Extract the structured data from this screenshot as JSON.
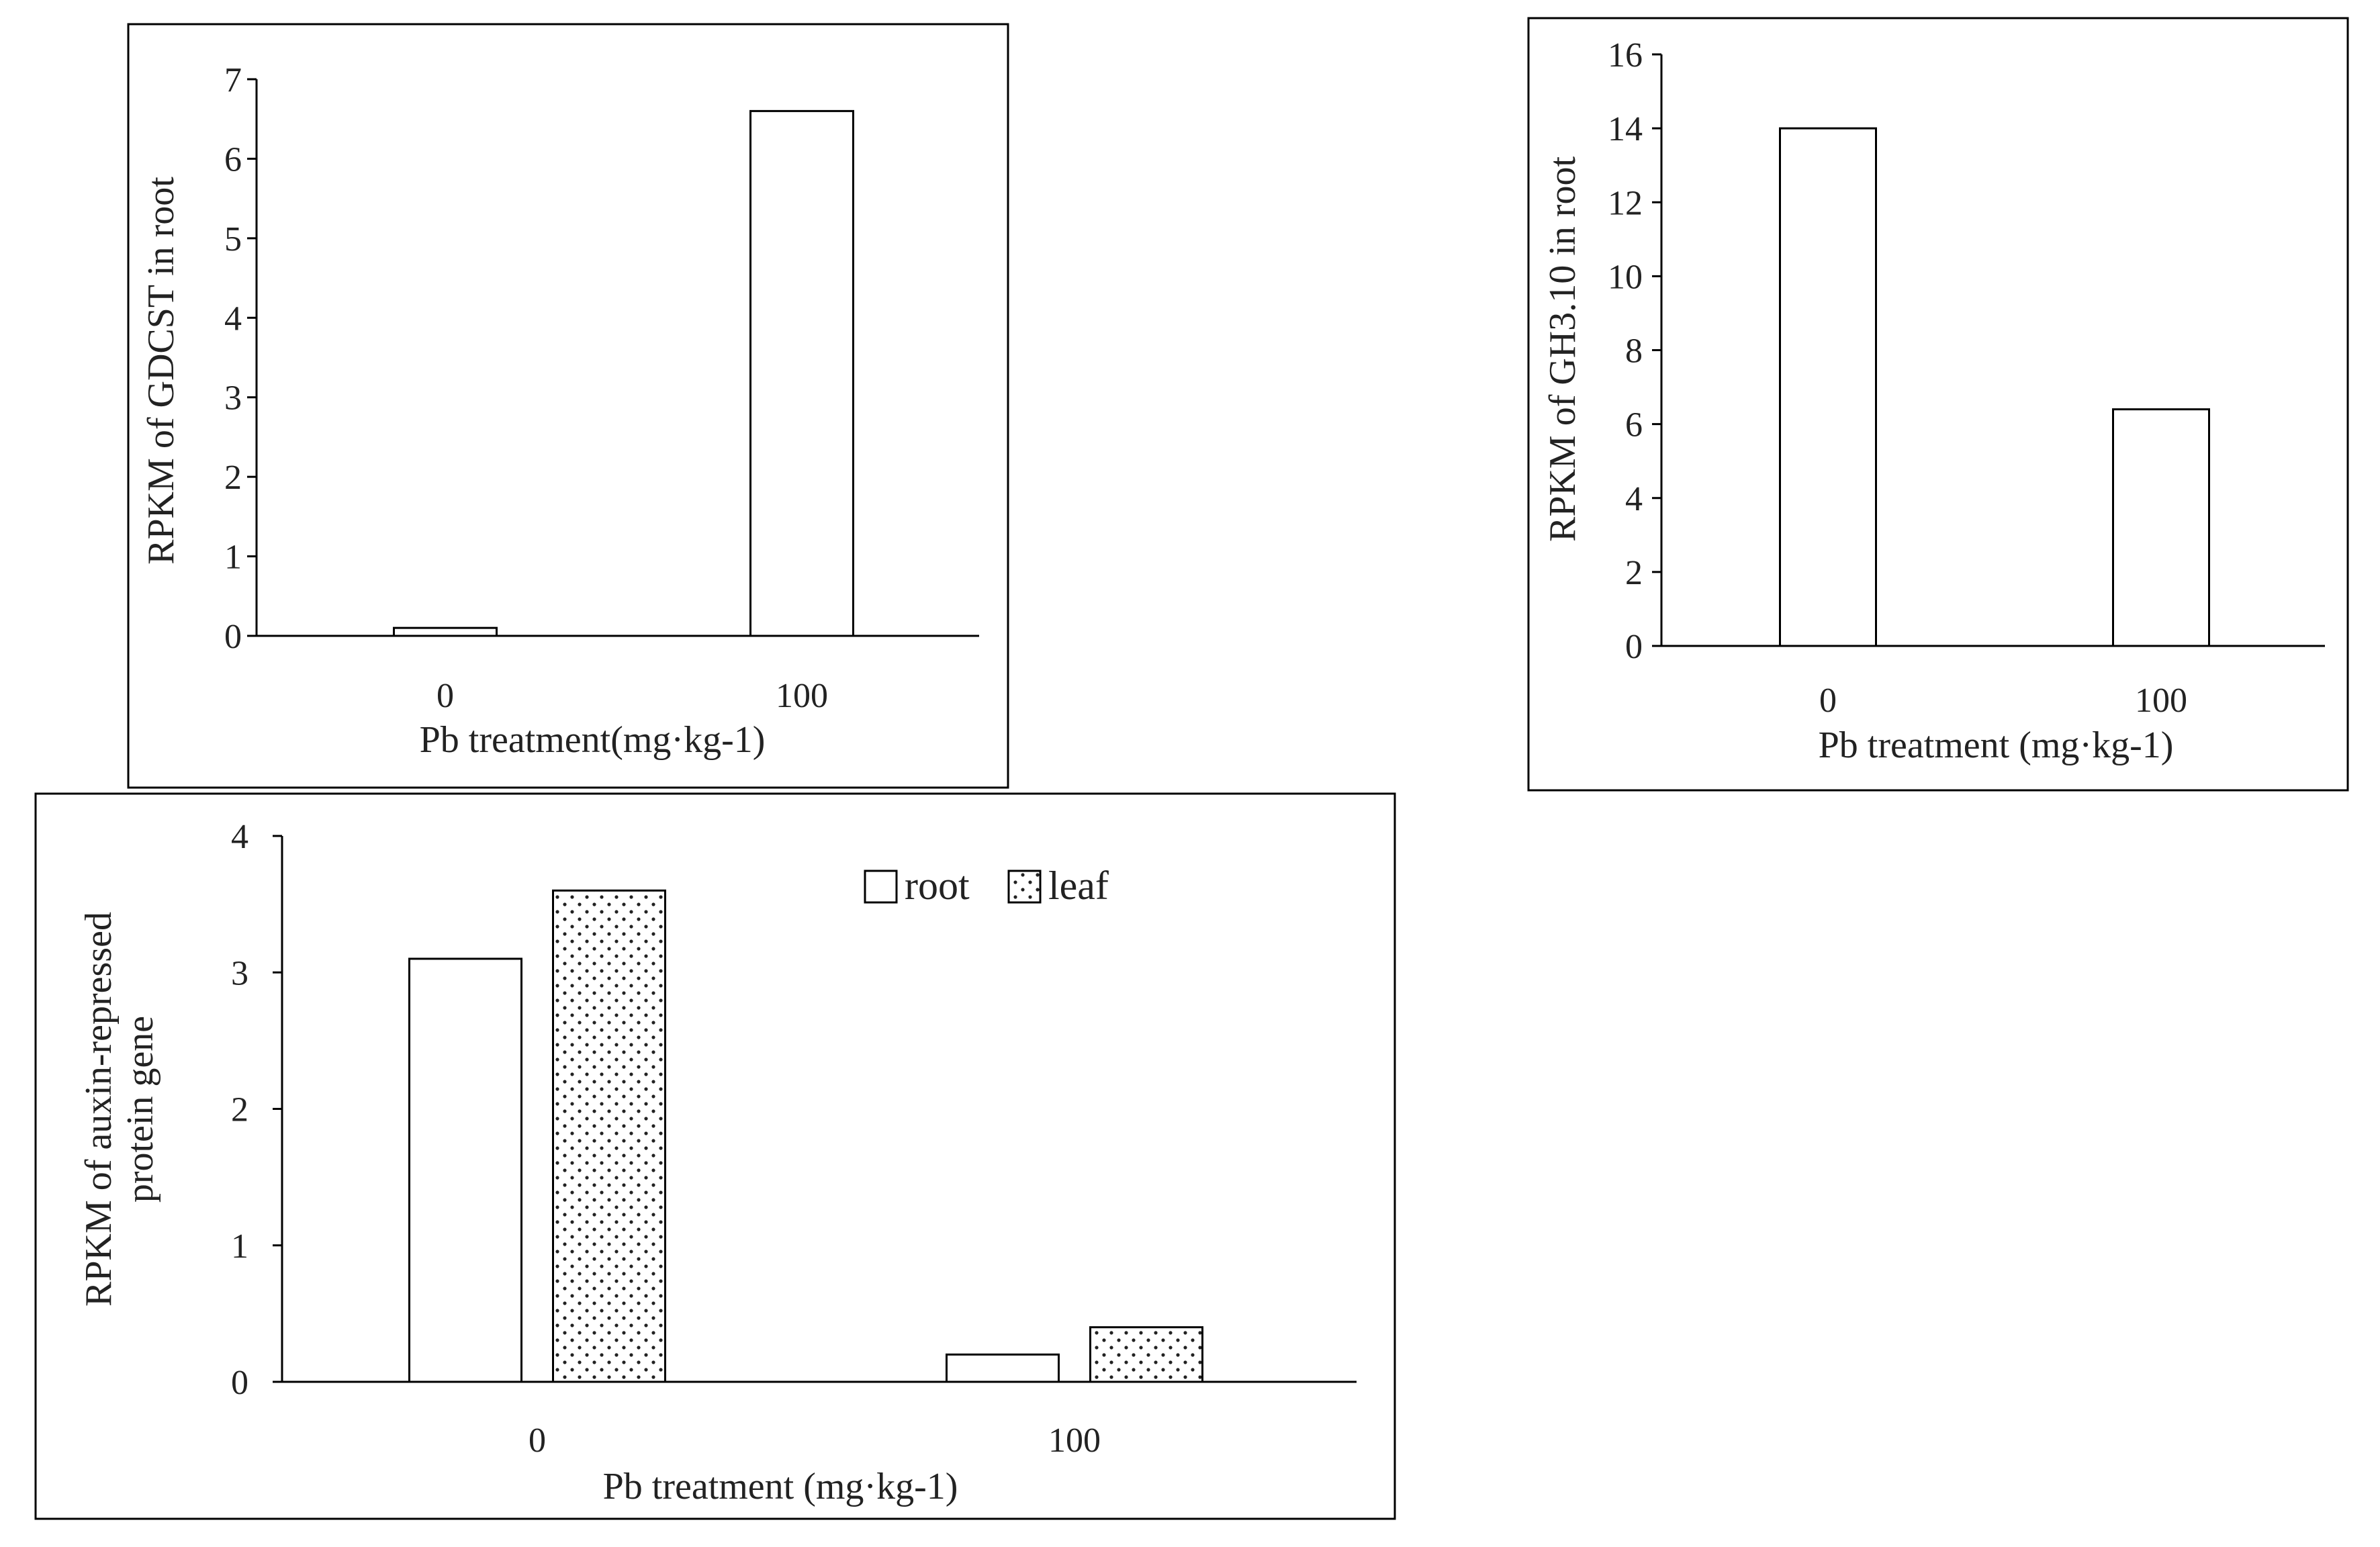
{
  "chart_data": [
    {
      "type": "bar",
      "title": "",
      "categories": [
        "0",
        "100"
      ],
      "values": [
        0.1,
        6.6
      ],
      "xlabel": "Pb treatment(mg·kg-1)",
      "ylabel": "RPKM of GDCST in root",
      "ylim": [
        0,
        7
      ],
      "yticks": [
        "0",
        "1",
        "2",
        "3",
        "4",
        "5",
        "6",
        "7"
      ],
      "grid": false
    },
    {
      "type": "bar",
      "title": "",
      "categories": [
        "0",
        "100"
      ],
      "values": [
        14.0,
        6.4
      ],
      "xlabel": "Pb treatment (mg·kg-1)",
      "ylabel": "RPKM of GH3.10 in root",
      "ylim": [
        0,
        16
      ],
      "yticks": [
        "0",
        "2",
        "4",
        "6",
        "8",
        "10",
        "12",
        "14",
        "16"
      ],
      "grid": false
    },
    {
      "type": "bar",
      "title": "",
      "categories": [
        "0",
        "100"
      ],
      "series": [
        {
          "name": "root",
          "values": [
            3.1,
            0.2
          ]
        },
        {
          "name": "leaf",
          "values": [
            3.6,
            0.4
          ]
        }
      ],
      "xlabel": "Pb treatment (mg·kg-1)",
      "ylabel": [
        "RPKM of auxin-repressed",
        "protein gene"
      ],
      "ylim": [
        0,
        4
      ],
      "yticks": [
        "0",
        "1",
        "2",
        "3",
        "4"
      ],
      "legend_position": "top-right",
      "grid": false
    }
  ],
  "colors": {
    "bar_fill": "#ffffff",
    "stroke": "#000000",
    "text": "#222222"
  }
}
